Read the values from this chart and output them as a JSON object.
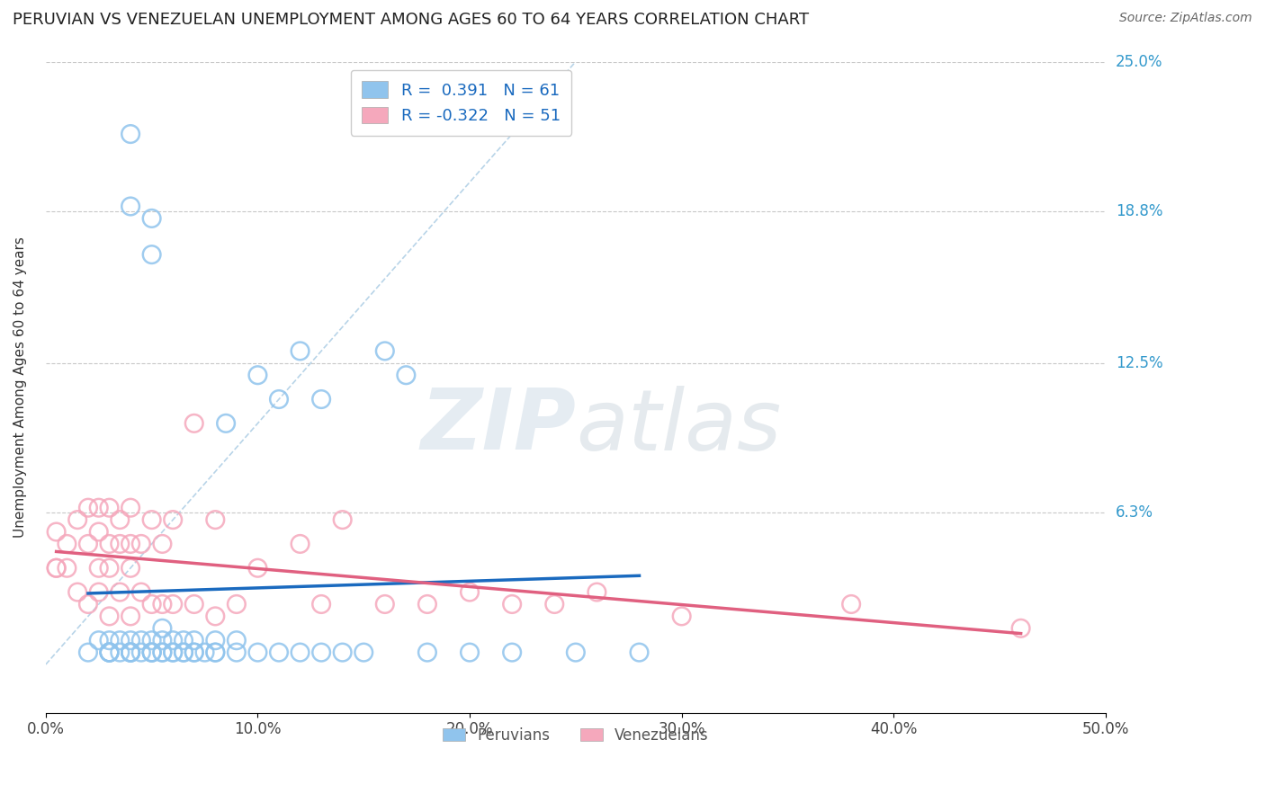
{
  "title": "PERUVIAN VS VENEZUELAN UNEMPLOYMENT AMONG AGES 60 TO 64 YEARS CORRELATION CHART",
  "source": "Source: ZipAtlas.com",
  "ylabel": "Unemployment Among Ages 60 to 64 years",
  "xlim": [
    0.0,
    0.5
  ],
  "ylim": [
    -0.02,
    0.25
  ],
  "xticks": [
    0.0,
    0.1,
    0.2,
    0.3,
    0.4,
    0.5
  ],
  "ytick_vals": [
    0.0,
    0.063,
    0.125,
    0.188,
    0.25
  ],
  "ytick_labels": [
    "",
    "6.3%",
    "12.5%",
    "18.8%",
    "25.0%"
  ],
  "xtick_labels": [
    "0.0%",
    "10.0%",
    "20.0%",
    "30.0%",
    "40.0%",
    "50.0%"
  ],
  "grid_color": "#c8c8c8",
  "watermark": "ZIPatlas",
  "peruvians_color": "#90c4ed",
  "venezuelans_color": "#f5a8bc",
  "peruvian_line_color": "#1a6abf",
  "venezuelan_line_color": "#e06080",
  "diagonal_color": "#b8d4e8",
  "R_peru": 0.391,
  "N_peru": 61,
  "R_vene": -0.322,
  "N_vene": 51,
  "legend_labels": [
    "Peruvians",
    "Venezuelans"
  ],
  "peruvians_x": [
    0.02,
    0.025,
    0.03,
    0.03,
    0.03,
    0.035,
    0.035,
    0.04,
    0.04,
    0.04,
    0.04,
    0.04,
    0.045,
    0.045,
    0.05,
    0.05,
    0.05,
    0.05,
    0.05,
    0.055,
    0.055,
    0.055,
    0.055,
    0.06,
    0.06,
    0.06,
    0.065,
    0.065,
    0.065,
    0.07,
    0.07,
    0.07,
    0.075,
    0.08,
    0.08,
    0.08,
    0.085,
    0.09,
    0.09,
    0.1,
    0.1,
    0.11,
    0.11,
    0.12,
    0.12,
    0.13,
    0.13,
    0.14,
    0.15,
    0.16,
    0.17,
    0.18,
    0.2,
    0.22,
    0.25,
    0.28,
    0.03,
    0.03,
    0.04,
    0.04,
    0.05
  ],
  "peruvians_y": [
    0.005,
    0.01,
    0.005,
    0.01,
    0.005,
    0.005,
    0.01,
    0.005,
    0.01,
    0.005,
    0.22,
    0.19,
    0.005,
    0.01,
    0.005,
    0.005,
    0.01,
    0.185,
    0.17,
    0.005,
    0.005,
    0.01,
    0.015,
    0.005,
    0.005,
    0.01,
    0.005,
    0.005,
    0.01,
    0.005,
    0.005,
    0.01,
    0.005,
    0.005,
    0.005,
    0.01,
    0.1,
    0.005,
    0.01,
    0.005,
    0.12,
    0.11,
    0.005,
    0.005,
    0.13,
    0.11,
    0.005,
    0.005,
    0.005,
    0.13,
    0.12,
    0.005,
    0.005,
    0.005,
    0.005,
    0.005,
    0.005,
    0.005,
    0.005,
    0.005,
    0.005
  ],
  "venezuelans_x": [
    0.005,
    0.005,
    0.01,
    0.01,
    0.015,
    0.015,
    0.02,
    0.02,
    0.02,
    0.025,
    0.025,
    0.025,
    0.025,
    0.03,
    0.03,
    0.03,
    0.03,
    0.035,
    0.035,
    0.035,
    0.04,
    0.04,
    0.04,
    0.04,
    0.045,
    0.045,
    0.05,
    0.05,
    0.055,
    0.055,
    0.06,
    0.06,
    0.07,
    0.07,
    0.08,
    0.08,
    0.09,
    0.1,
    0.12,
    0.13,
    0.14,
    0.16,
    0.18,
    0.2,
    0.22,
    0.24,
    0.26,
    0.3,
    0.38,
    0.46,
    0.005
  ],
  "venezuelans_y": [
    0.04,
    0.055,
    0.04,
    0.05,
    0.03,
    0.06,
    0.025,
    0.05,
    0.065,
    0.03,
    0.04,
    0.055,
    0.065,
    0.02,
    0.04,
    0.05,
    0.065,
    0.03,
    0.05,
    0.06,
    0.02,
    0.04,
    0.05,
    0.065,
    0.03,
    0.05,
    0.025,
    0.06,
    0.025,
    0.05,
    0.025,
    0.06,
    0.025,
    0.1,
    0.02,
    0.06,
    0.025,
    0.04,
    0.05,
    0.025,
    0.06,
    0.025,
    0.025,
    0.03,
    0.025,
    0.025,
    0.03,
    0.02,
    0.025,
    0.015,
    0.04
  ]
}
